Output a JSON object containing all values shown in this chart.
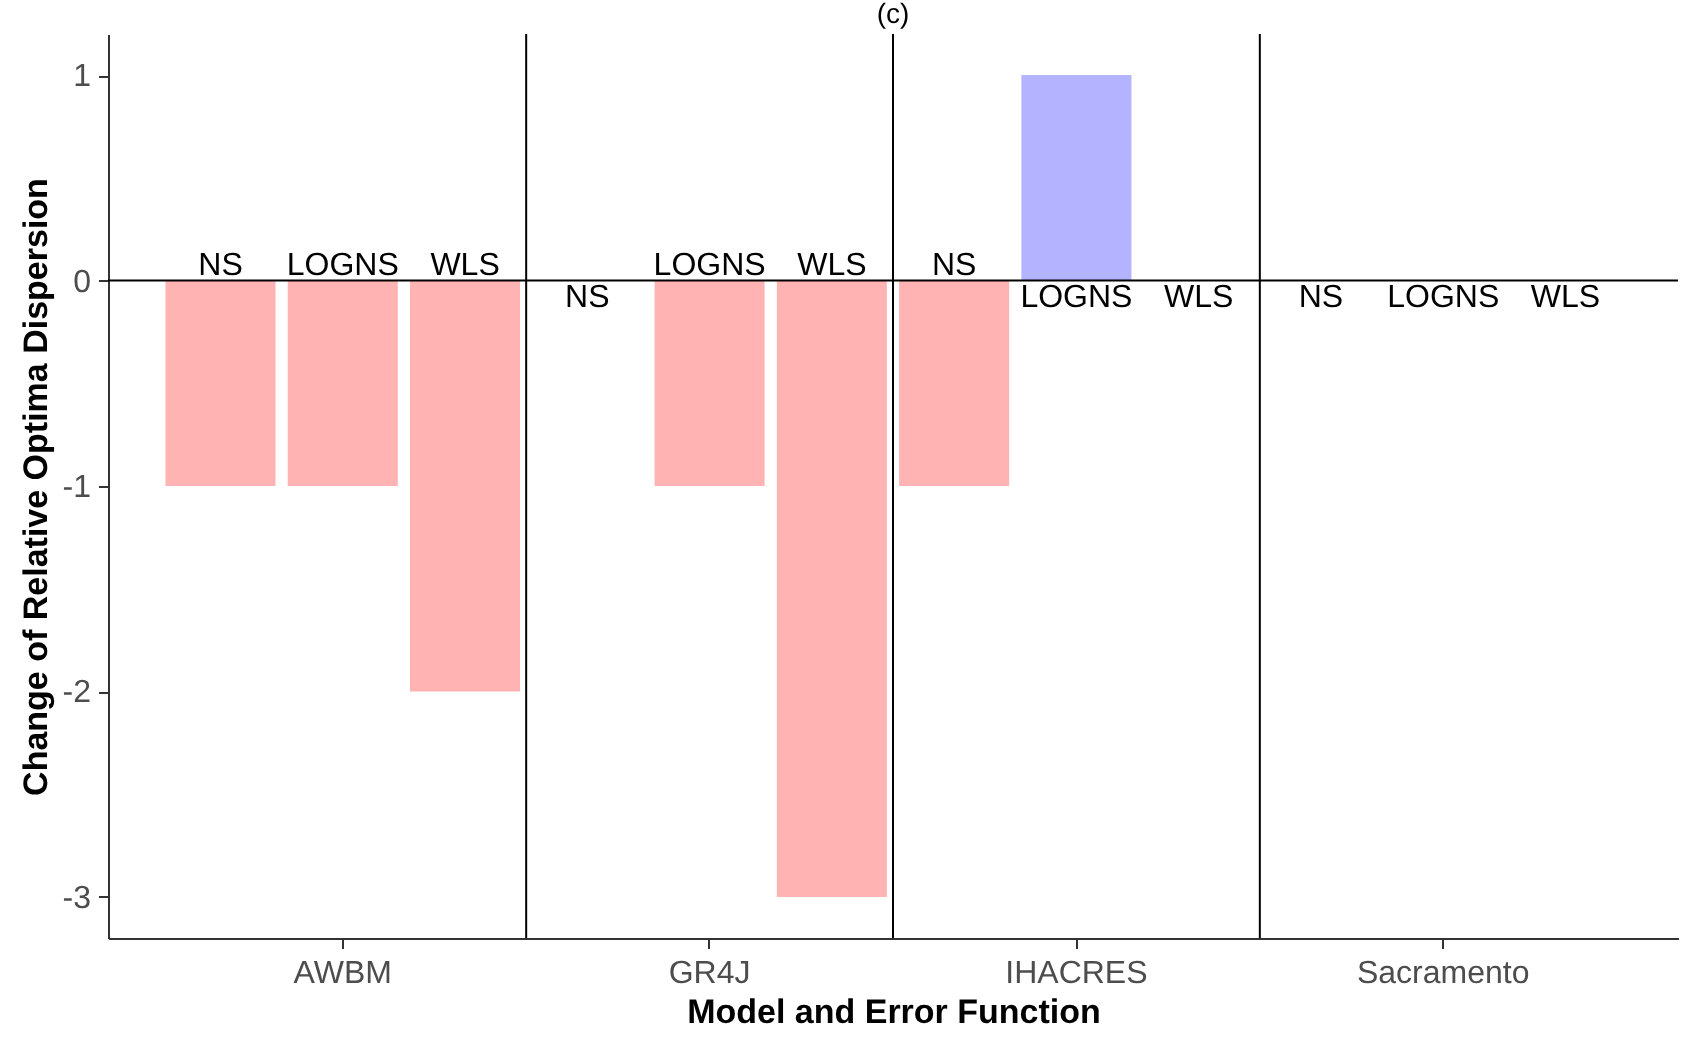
{
  "chart_data": {
    "type": "bar",
    "title": "(c)",
    "xlabel": "Model and Error Function",
    "ylabel": "Change of Relative Optima Dispersion",
    "categories": [
      "AWBM",
      "GR4J",
      "IHACRES",
      "Sacramento"
    ],
    "series": [
      {
        "name": "NS",
        "values": [
          -1,
          0,
          -1,
          0
        ],
        "colors": [
          "#ffb3b3",
          "#ffb3b3",
          "#ffb3b3",
          "#ffb3b3"
        ]
      },
      {
        "name": "LOGNS",
        "values": [
          -1,
          -1,
          1,
          0
        ],
        "colors": [
          "#ffb3b3",
          "#ffb3b3",
          "#b3b3ff",
          "#ffb3b3"
        ]
      },
      {
        "name": "WLS",
        "values": [
          -2,
          -3,
          0,
          0
        ],
        "colors": [
          "#ffb3b3",
          "#ffb3b3",
          "#ffb3b3",
          "#ffb3b3"
        ]
      }
    ],
    "ylim": [
      -3.2,
      1.2
    ],
    "yticks": [
      -3,
      -2,
      -1,
      0,
      1
    ],
    "ref_lines": [
      {
        "axis": "y",
        "value": 0,
        "color": "#000000"
      }
    ],
    "grid": "x"
  }
}
